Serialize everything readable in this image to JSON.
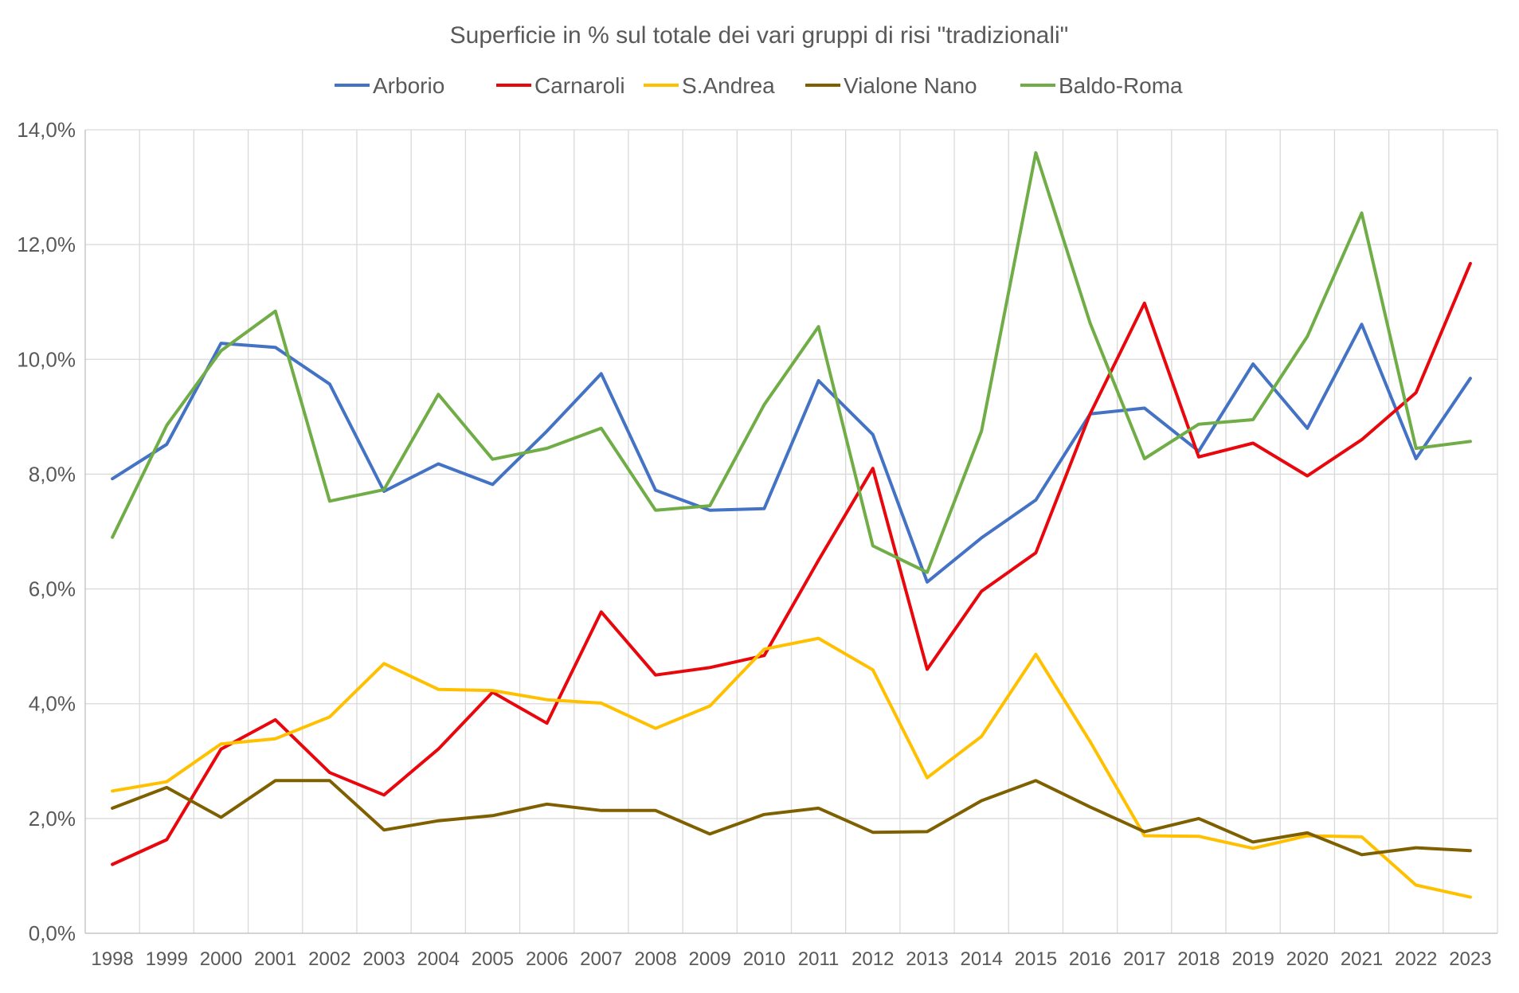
{
  "chart_data": {
    "type": "line",
    "title": "Superficie in % sul totale dei vari gruppi di risi \"tradizionali\"",
    "xlabel": "",
    "ylabel": "",
    "ylim": [
      0,
      14
    ],
    "y_ticks": [
      0,
      2,
      4,
      6,
      8,
      10,
      12,
      14
    ],
    "y_tick_labels": [
      "0,0%",
      "2,0%",
      "4,0%",
      "6,0%",
      "8,0%",
      "10,0%",
      "12,0%",
      "14,0%"
    ],
    "grid": true,
    "legend_position": "top",
    "categories": [
      "1998",
      "1999",
      "2000",
      "2001",
      "2002",
      "2003",
      "2004",
      "2005",
      "2006",
      "2007",
      "2008",
      "2009",
      "2010",
      "2011",
      "2012",
      "2013",
      "2014",
      "2015",
      "2016",
      "2017",
      "2018",
      "2019",
      "2020",
      "2021",
      "2022",
      "2023"
    ],
    "series": [
      {
        "name": "Arborio",
        "color": "#4472C4",
        "values": [
          7.92,
          8.52,
          10.28,
          10.21,
          9.57,
          7.7,
          8.18,
          7.82,
          8.75,
          9.75,
          7.72,
          7.37,
          7.4,
          9.63,
          8.69,
          6.12,
          6.89,
          7.55,
          9.05,
          9.15,
          8.4,
          9.92,
          8.8,
          10.61,
          8.27,
          9.67
        ]
      },
      {
        "name": "Carnaroli",
        "color": "#E8070C",
        "values": [
          1.2,
          1.63,
          3.21,
          3.72,
          2.8,
          2.41,
          3.21,
          4.2,
          3.66,
          5.6,
          4.5,
          4.63,
          4.84,
          6.5,
          8.1,
          4.6,
          5.96,
          6.63,
          9.05,
          10.98,
          8.3,
          8.54,
          7.97,
          8.6,
          9.42,
          11.67
        ]
      },
      {
        "name": "S.Andrea",
        "color": "#FFC000",
        "values": [
          2.48,
          2.64,
          3.3,
          3.39,
          3.77,
          4.7,
          4.25,
          4.23,
          4.07,
          4.01,
          3.57,
          3.96,
          4.95,
          5.14,
          4.59,
          2.71,
          3.43,
          4.86,
          3.34,
          1.7,
          1.69,
          1.48,
          1.7,
          1.68,
          0.84,
          0.63
        ]
      },
      {
        "name": "Vialone Nano",
        "color": "#7F6000",
        "values": [
          2.18,
          2.54,
          2.02,
          2.66,
          2.66,
          1.8,
          1.96,
          2.05,
          2.25,
          2.14,
          2.14,
          1.73,
          2.07,
          2.18,
          1.76,
          1.77,
          2.31,
          2.66,
          2.2,
          1.77,
          2.0,
          1.59,
          1.75,
          1.37,
          1.49,
          1.44
        ]
      },
      {
        "name": "Baldo-Roma",
        "color": "#70AD47",
        "values": [
          6.9,
          8.85,
          10.15,
          10.84,
          7.53,
          7.73,
          9.39,
          8.26,
          8.45,
          8.8,
          7.37,
          7.45,
          9.21,
          10.57,
          6.75,
          6.29,
          8.75,
          13.6,
          10.63,
          8.27,
          8.87,
          8.95,
          10.4,
          12.55,
          8.45,
          8.57
        ]
      }
    ]
  }
}
